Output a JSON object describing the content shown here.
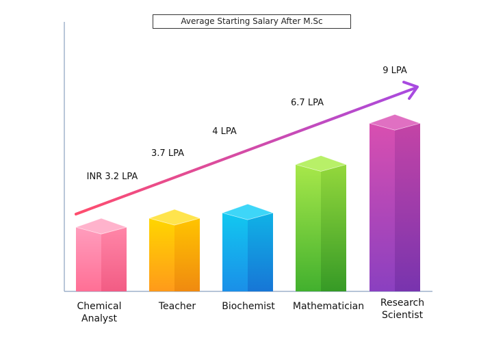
{
  "chart_data": {
    "type": "bar",
    "title": "Average Starting Salary After M.Sc",
    "categories": [
      "Chemical Analyst",
      "Teacher",
      "Biochemist",
      "Mathematician",
      "Research Scientist"
    ],
    "category_lines": [
      [
        "Chemical",
        "Analyst"
      ],
      [
        "Teacher"
      ],
      [
        "Biochemist"
      ],
      [
        "Mathematician"
      ],
      [
        "Research",
        "Scientist"
      ]
    ],
    "values": [
      3.2,
      3.7,
      4,
      6.7,
      9
    ],
    "value_labels": [
      "INR 3.2 LPA",
      "3.7 LPA",
      "4 LPA",
      "6.7 LPA",
      "9 LPA"
    ],
    "xlabel": "",
    "ylabel": "",
    "grid": false,
    "legend": "none",
    "bar_colors": [
      {
        "front_top": "#ff9dbd",
        "front_bottom": "#ff6f95",
        "side_top": "#ff86a8",
        "side_bottom": "#f25c84",
        "top": "#ffb3cc"
      },
      {
        "front_top": "#ffd600",
        "front_bottom": "#ff9a1a",
        "side_top": "#ffc400",
        "side_bottom": "#f08a10",
        "top": "#ffe44d"
      },
      {
        "front_top": "#12c8f0",
        "front_bottom": "#1a8fe8",
        "side_top": "#10b2e6",
        "side_bottom": "#1776d6",
        "top": "#3ed6f8"
      },
      {
        "front_top": "#a8e84a",
        "front_bottom": "#42b02e",
        "side_top": "#94d83c",
        "side_bottom": "#369a26",
        "top": "#b8f068"
      },
      {
        "front_top": "#d94fb0",
        "front_bottom": "#8a40c0",
        "side_top": "#c444a6",
        "side_bottom": "#7834ae",
        "top": "#e070c2"
      }
    ],
    "trend_arrow_colors": [
      "#ff4d6d",
      "#a84ae0"
    ],
    "axis_color": "#8aa0bf"
  }
}
